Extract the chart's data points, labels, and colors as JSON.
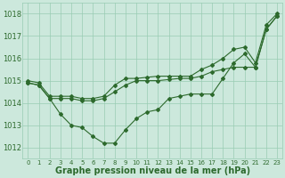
{
  "xlabel": "Graphe pression niveau de la mer (hPa)",
  "hours": [
    0,
    1,
    2,
    3,
    4,
    5,
    6,
    7,
    8,
    9,
    10,
    11,
    12,
    13,
    14,
    15,
    16,
    17,
    18,
    19,
    20,
    21,
    22,
    23
  ],
  "line_low": [
    1014.9,
    1014.8,
    1014.2,
    1013.5,
    1013.0,
    1012.9,
    1012.5,
    1012.2,
    1012.2,
    1012.8,
    1013.3,
    1013.6,
    1013.7,
    1014.2,
    1014.3,
    1014.4,
    1014.4,
    1014.4,
    1015.1,
    1015.8,
    1016.2,
    1015.6,
    1017.3,
    1017.9
  ],
  "line_mid": [
    1014.9,
    1014.8,
    1014.2,
    1014.2,
    1014.2,
    1014.1,
    1014.1,
    1014.2,
    1014.5,
    1014.8,
    1015.0,
    1015.0,
    1015.0,
    1015.05,
    1015.1,
    1015.1,
    1015.2,
    1015.4,
    1015.5,
    1015.6,
    1015.6,
    1015.6,
    1017.3,
    1017.9
  ],
  "line_top": [
    1015.0,
    1014.9,
    1014.3,
    1014.3,
    1014.3,
    1014.2,
    1014.2,
    1014.3,
    1014.8,
    1015.1,
    1015.1,
    1015.15,
    1015.2,
    1015.2,
    1015.2,
    1015.2,
    1015.5,
    1015.7,
    1016.0,
    1016.4,
    1016.5,
    1015.8,
    1017.5,
    1018.0
  ],
  "line_color": "#2d6a2d",
  "bg_color": "#cce8dc",
  "grid_color": "#99ccb3",
  "ylim": [
    1011.5,
    1018.5
  ],
  "yticks": [
    1012,
    1013,
    1014,
    1015,
    1016,
    1017,
    1018
  ],
  "tick_fontsize": 6,
  "xlabel_fontsize": 7
}
